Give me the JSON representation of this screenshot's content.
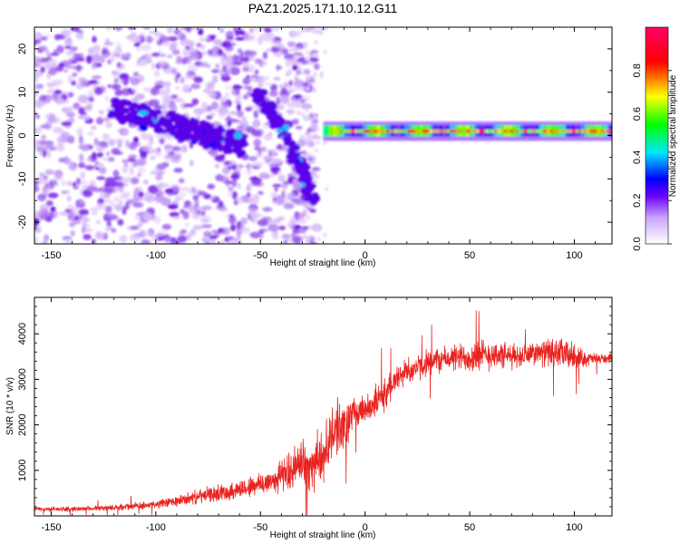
{
  "title": "PAZ1.2025.171.10.12.G11",
  "chart_data": [
    {
      "type": "heatmap",
      "xlabel": "Height of straight line (km)",
      "ylabel": "Frequency (Hz)",
      "xlim": [
        -158,
        118
      ],
      "ylim": [
        -25,
        25
      ],
      "x_ticks": [
        -150,
        -100,
        -50,
        0,
        50,
        100
      ],
      "y_ticks": [
        -20,
        -10,
        0,
        10,
        20
      ],
      "colorbar": {
        "label": "Normalized spectral amplitude",
        "range": [
          0,
          1
        ],
        "ticks": [
          0,
          0.2,
          0.4,
          0.6,
          0.8
        ],
        "tick_labels": [
          "0.0",
          "0.2",
          "0.4",
          "0.6",
          "0.8"
        ],
        "stops": [
          "#ffffff",
          "#6a00ff",
          "#0000ff",
          "#00e5ff",
          "#00ff00",
          "#ffff00",
          "#ff0000",
          "#ff0066"
        ]
      },
      "features": [
        {
          "name": "diffuse noise",
          "x_range": [
            -158,
            -23
          ],
          "freq_range": [
            -25,
            25
          ],
          "amplitude": 0.15
        },
        {
          "name": "descending branch",
          "x": [
            -120,
            -95,
            -75,
            -58
          ],
          "freq": [
            6,
            3,
            0,
            -2
          ],
          "amplitude": 0.3
        },
        {
          "name": "descending branch 2",
          "x": [
            -52,
            -40,
            -30,
            -25
          ],
          "freq": [
            10,
            2,
            -8,
            -15
          ],
          "amplitude": 0.35
        },
        {
          "name": "direct signal",
          "x_range": [
            -20,
            118
          ],
          "freq": 1,
          "amplitude": 0.95
        }
      ]
    },
    {
      "type": "line",
      "xlabel": "Height of straight line (km)",
      "ylabel": "SNR (10 * v/v)",
      "xlim": [
        -158,
        118
      ],
      "ylim": [
        0,
        4800
      ],
      "x_ticks": [
        -150,
        -100,
        -50,
        0,
        50,
        100
      ],
      "y_ticks": [
        1000,
        2000,
        3000,
        4000
      ],
      "color": "#e8231f",
      "x": [
        -158,
        -140,
        -120,
        -100,
        -90,
        -80,
        -70,
        -60,
        -50,
        -45,
        -40,
        -35,
        -30,
        -25,
        -20,
        -15,
        -10,
        -5,
        0,
        5,
        10,
        15,
        20,
        25,
        30,
        40,
        50,
        55,
        60,
        70,
        80,
        90,
        95,
        100,
        105,
        110,
        118
      ],
      "y": [
        150,
        150,
        180,
        250,
        320,
        420,
        500,
        580,
        700,
        750,
        900,
        1000,
        1200,
        1100,
        1300,
        1900,
        2000,
        2300,
        2350,
        2500,
        2700,
        3000,
        3200,
        3250,
        3400,
        3450,
        3500,
        3500,
        3550,
        3500,
        3550,
        3600,
        3550,
        3500,
        3450,
        3450,
        3450
      ],
      "spread": [
        60,
        60,
        70,
        110,
        140,
        180,
        220,
        250,
        320,
        350,
        420,
        520,
        650,
        700,
        750,
        700,
        650,
        450,
        380,
        420,
        450,
        380,
        350,
        350,
        330,
        330,
        420,
        450,
        400,
        330,
        300,
        380,
        400,
        350,
        200,
        150,
        120
      ]
    }
  ]
}
